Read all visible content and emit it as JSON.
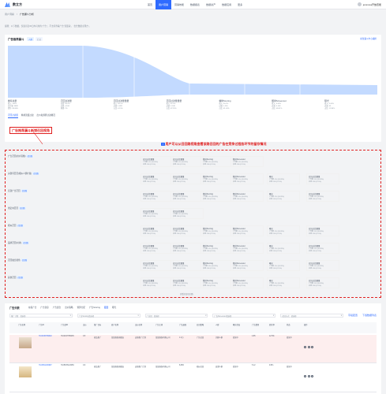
{
  "app": {
    "name": "数立方"
  },
  "nav": [
    "首页",
    "用户营销",
    "营销效能",
    "数据报表",
    "数据资产",
    "数据应用",
    "更多"
  ],
  "nav_active": 1,
  "user": {
    "name": "joxsmoa开放查能"
  },
  "breadcrumb": [
    "用户洞察",
    "广告漏斗分析"
  ],
  "notice": "提醒：以下数据，仅展示近30日内可用的“广告”，不支持查看广告”流量来“，“出仕数据主理方“。",
  "funnel": {
    "title": "广告推荐漏斗",
    "chips": [
      "人群",
      "汇总"
    ],
    "link": "前往漏斗中心编排"
  },
  "stats": [
    {
      "label": "推荐总量",
      "rows": [
        "投入: 100%",
        "总计量: 3889",
        "提升: 66.86%"
      ]
    },
    {
      "label": "召回过滤量",
      "rows": [
        "召回: 96.4%",
        "过滤: 4,180",
        "原因: 2%"
      ]
    },
    {
      "label": "召回过滤量量量",
      "rows": [
        "投入: 94.1%",
        "过滤: 1,892",
        "占比: 0.15%"
      ]
    },
    {
      "label": "召回过滤量量量",
      "rows": [
        "投入: 87.5%",
        "过滤: 2,148",
        "占比: 87.91%"
      ]
    },
    {
      "label": "精排Scoring",
      "rows": [
        "投入: 30.2%",
        "过滤: 1,245",
        "占比: 61.00%"
      ]
    },
    {
      "label": "粗排Screenout",
      "rows": [
        "投入: 0.03%",
        "过滤: 3,109",
        "占比: 48.01%"
      ]
    },
    {
      "label": "曝光",
      "rows": [
        "投入: 0.03%",
        "过滤: 45",
        "占比: 12.84%"
      ]
    }
  ],
  "funnel_tabs": [
    "召回过滤量",
    "精排流量过滤",
    "出价和预算过滤概况"
  ],
  "annotation": {
    "title": "广告推荐漏斗新增召回视角",
    "caption": "用户可以从召回路视角查看该路召回的广告在竞争过程各环节的留存情况"
  },
  "recall_rows": [
    {
      "label": "广告召回(用户画像)",
      "tag": "召回路",
      "nodes": 4
    },
    {
      "label": "关键词召回(相似人群扩展)",
      "tag": "召回路",
      "nodes": 6
    },
    {
      "label": "高潜广告召回",
      "tag": "召回路",
      "nodes": 6
    },
    {
      "label": "重定向召回",
      "tag": "召回路",
      "nodes": 2
    },
    {
      "label": "相似召回",
      "tag": "召回路",
      "nodes": 6
    },
    {
      "label": "品牌召回(时尚)",
      "tag": "召回路",
      "nodes": 6
    },
    {
      "label": "召回融合视角",
      "tag": "召回路",
      "nodes": 6
    },
    {
      "label": "其他召回",
      "tag": "召回路",
      "nodes": 6
    }
  ],
  "node_titles": [
    "召回过滤量量",
    "召回过滤量量",
    "精排Scoring",
    "粗排Screenout",
    "曝光",
    "召回过滤量量"
  ],
  "node_lines": [
    "广告数: 114 (19.28%)",
    "过滤: 180 (2.15%)"
  ],
  "expand": "查看全部召回路",
  "table": {
    "title": "广告列表",
    "tabs": [
      "在投广告",
      "广告创意",
      "广告组合",
      "出价策略",
      "预算分配",
      "广告Scoring",
      "召回",
      "曝光"
    ],
    "active_tab": 6,
    "filters": [
      "推广计划：请选择",
      "广告Scoring请选择",
      "广告组：请选择",
      "广告Screenout请选择",
      "召回方式：请选择"
    ],
    "filter_right": [
      "字段配置",
      "下载数据列表"
    ],
    "headers": [
      "",
      "广告名称",
      "广告ID",
      "广告组ID",
      "出价",
      "推广目标",
      "商户名称",
      "出价名称",
      "广告主体",
      "广告展现",
      "召回策略",
      "人群",
      "曝光状态",
      "广告费用",
      "转化率",
      "状态",
      "操作"
    ],
    "rows": [
      {
        "name": "2024春季新品女装上衣推广",
        "id": "7102345789602",
        "gid": "7102347785435",
        "bid": "0.5",
        "goal": "商品推广",
        "merchant": "某某服饰旗舰店",
        "plan": "店铺推广计划",
        "body": "某某服饰有限公司",
        "show": "1.2万",
        "recall": "广告召回",
        "crowd": "兴趣人群",
        "status": "投放中",
        "cost": "4.85",
        "conv": "12.5%",
        "state": "投放中"
      },
      {
        "name": "夏季新款连衣裙品牌推广",
        "id": "7104561230987",
        "gid": "7105678123456",
        "bid": "0.6",
        "goal": "商品推广",
        "merchant": "某某服饰旗舰店",
        "plan": "店铺推广计划",
        "body": "某某服饰有限公司",
        "show": "8,956",
        "recall": "相似召回",
        "crowd": "高潜人群",
        "status": "投放中",
        "cost": "5.12",
        "conv": "9.8%",
        "state": "投放中"
      }
    ]
  },
  "colors": {
    "primary": "#2f6bff",
    "annotation": "#e02020",
    "funnel": "#a8c8ff"
  }
}
